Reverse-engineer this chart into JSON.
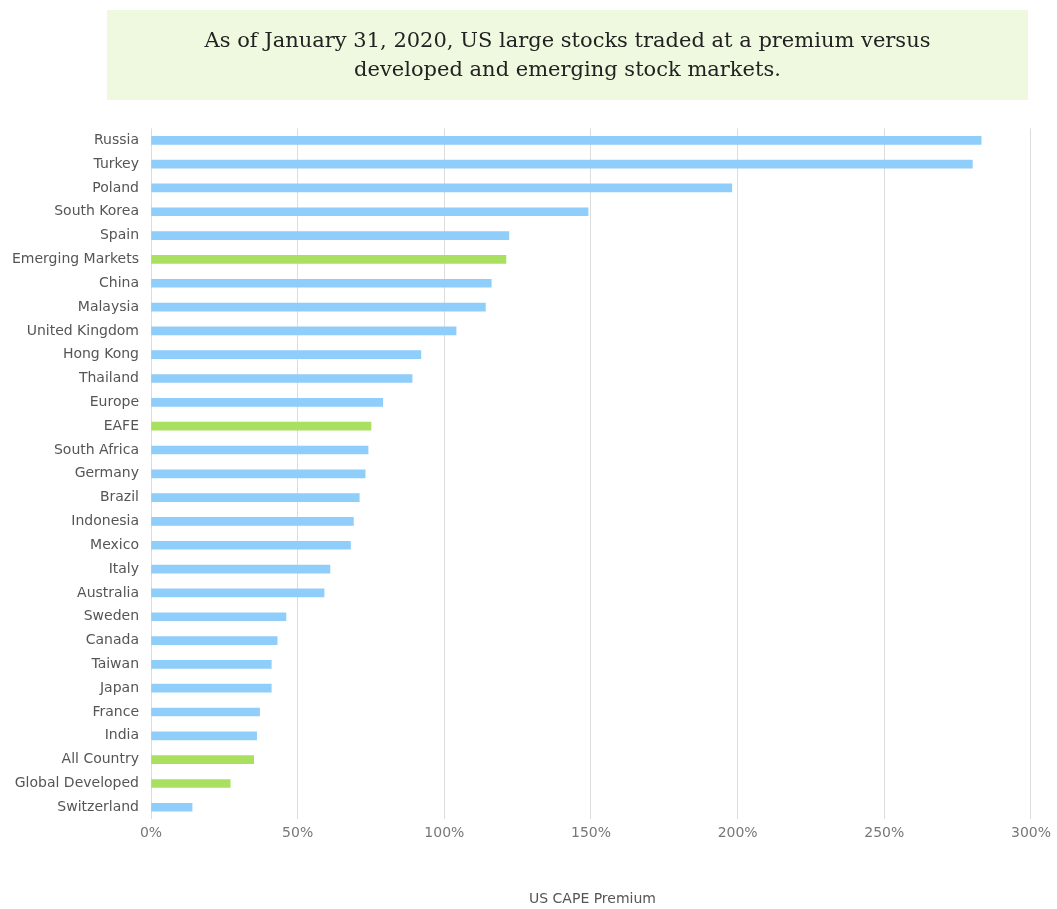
{
  "chart_data": {
    "type": "bar",
    "orientation": "horizontal",
    "title": "As of January 31, 2020, US large stocks traded at a premium versus developed and emerging stock markets.",
    "xlabel": "US CAPE Premium",
    "categories": [
      "Russia",
      "Turkey",
      "Poland",
      "South Korea",
      "Spain",
      "Emerging Markets",
      "China",
      "Malaysia",
      "United Kingdom",
      "Hong Kong",
      "Thailand",
      "Europe",
      "EAFE",
      "South Africa",
      "Germany",
      "Brazil",
      "Indonesia",
      "Mexico",
      "Italy",
      "Australia",
      "Sweden",
      "Canada",
      "Taiwan",
      "Japan",
      "France",
      "India",
      "All Country",
      "Global Developed",
      "Switzerland"
    ],
    "values": [
      283,
      280,
      198,
      149,
      122,
      121,
      116,
      114,
      104,
      92,
      89,
      79,
      75,
      74,
      73,
      71,
      69,
      68,
      61,
      59,
      46,
      43,
      41,
      41,
      37,
      36,
      35,
      27,
      14
    ],
    "colors": [
      "#8fcdfa",
      "#8fcdfa",
      "#8fcdfa",
      "#8fcdfa",
      "#8fcdfa",
      "#a9e05f",
      "#8fcdfa",
      "#8fcdfa",
      "#8fcdfa",
      "#8fcdfa",
      "#8fcdfa",
      "#8fcdfa",
      "#a9e05f",
      "#8fcdfa",
      "#8fcdfa",
      "#8fcdfa",
      "#8fcdfa",
      "#8fcdfa",
      "#8fcdfa",
      "#8fcdfa",
      "#8fcdfa",
      "#8fcdfa",
      "#8fcdfa",
      "#8fcdfa",
      "#8fcdfa",
      "#8fcdfa",
      "#a9e05f",
      "#a9e05f",
      "#8fcdfa"
    ],
    "xlim": [
      0,
      300
    ],
    "xticks": [
      {
        "value": 0,
        "label": "0%"
      },
      {
        "value": 50,
        "label": "50%"
      },
      {
        "value": 100,
        "label": "100%"
      },
      {
        "value": 150,
        "label": "150%"
      },
      {
        "value": 200,
        "label": "200%"
      },
      {
        "value": 250,
        "label": "250%"
      },
      {
        "value": 300,
        "label": "300%"
      }
    ],
    "grid": "x",
    "legend": false
  }
}
